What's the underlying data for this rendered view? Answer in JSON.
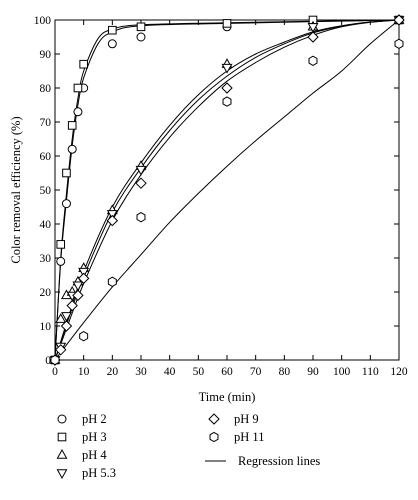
{
  "chart_data": {
    "type": "scatter",
    "xlabel": "Time (min)",
    "ylabel": "Color removal efficiency (%)",
    "xlim": [
      0,
      120
    ],
    "ylim": [
      0,
      100
    ],
    "xticks": [
      0,
      10,
      20,
      30,
      40,
      50,
      60,
      70,
      80,
      90,
      100,
      110,
      120
    ],
    "yticks": [
      0,
      10,
      20,
      30,
      40,
      50,
      60,
      70,
      80,
      90,
      100
    ],
    "grid": false,
    "legend_position": "below",
    "series": [
      {
        "name": "pH 2",
        "marker": "circle",
        "x": [
          0,
          2,
          4,
          6,
          8,
          10,
          20,
          30,
          60,
          90,
          120
        ],
        "y": [
          0,
          29,
          46,
          62,
          73,
          80,
          93,
          95,
          98,
          99,
          100
        ],
        "fit": [
          [
            0,
            0
          ],
          [
            2,
            29
          ],
          [
            4,
            47
          ],
          [
            6,
            63
          ],
          [
            8,
            75
          ],
          [
            10,
            83
          ],
          [
            15,
            93
          ],
          [
            20,
            96.5
          ],
          [
            30,
            98.3
          ],
          [
            60,
            99
          ],
          [
            120,
            100
          ]
        ]
      },
      {
        "name": "pH 3",
        "marker": "square",
        "x": [
          0,
          2,
          4,
          6,
          8,
          10,
          20,
          30,
          60,
          90,
          120
        ],
        "y": [
          0,
          34,
          55,
          69,
          80,
          87,
          97,
          98,
          99,
          100,
          100
        ],
        "fit": [
          [
            0,
            0
          ],
          [
            2,
            30
          ],
          [
            4,
            49
          ],
          [
            6,
            65
          ],
          [
            8,
            77
          ],
          [
            10,
            85
          ],
          [
            15,
            94.5
          ],
          [
            20,
            97.3
          ],
          [
            30,
            98.6
          ],
          [
            60,
            99.2
          ],
          [
            120,
            100
          ]
        ]
      },
      {
        "name": "pH 4",
        "marker": "triangle-up",
        "x": [
          0,
          2,
          4,
          6,
          8,
          10,
          20,
          30,
          60,
          90,
          120
        ],
        "y": [
          0,
          12,
          19,
          20,
          23,
          27,
          44,
          57,
          87,
          98,
          100
        ],
        "fit": [
          [
            0,
            0
          ],
          [
            5,
            13.5
          ],
          [
            10,
            26
          ],
          [
            20,
            45
          ],
          [
            30,
            58
          ],
          [
            40,
            69
          ],
          [
            50,
            78
          ],
          [
            60,
            85
          ],
          [
            70,
            90
          ],
          [
            80,
            93.5
          ],
          [
            90,
            96.5
          ],
          [
            100,
            98.3
          ],
          [
            110,
            99.4
          ],
          [
            120,
            100
          ]
        ]
      },
      {
        "name": "pH 5.3",
        "marker": "triangle-down",
        "x": [
          0,
          2,
          4,
          6,
          8,
          10,
          20,
          30,
          60,
          90,
          120
        ],
        "y": [
          0,
          4,
          13,
          19,
          22,
          26,
          43,
          56,
          86,
          98,
          100
        ],
        "fit": [
          [
            0,
            0
          ],
          [
            5,
            12.8
          ],
          [
            10,
            24.5
          ],
          [
            20,
            43.5
          ],
          [
            30,
            56.5
          ],
          [
            40,
            67.5
          ],
          [
            50,
            76.5
          ],
          [
            60,
            83.5
          ],
          [
            70,
            89
          ],
          [
            80,
            93
          ],
          [
            90,
            96.2
          ],
          [
            100,
            98.2
          ],
          [
            110,
            99.4
          ],
          [
            120,
            100
          ]
        ]
      },
      {
        "name": "pH 9",
        "marker": "diamond",
        "x": [
          0,
          2,
          4,
          6,
          8,
          10,
          20,
          30,
          60,
          90,
          120
        ],
        "y": [
          0,
          3,
          10,
          16,
          19,
          24,
          41,
          52,
          80,
          95,
          100
        ],
        "fit": [
          [
            0,
            0
          ],
          [
            5,
            11.5
          ],
          [
            10,
            22.5
          ],
          [
            20,
            41
          ],
          [
            30,
            54.5
          ],
          [
            40,
            65.5
          ],
          [
            50,
            74.5
          ],
          [
            60,
            82
          ],
          [
            70,
            87.5
          ],
          [
            80,
            92
          ],
          [
            90,
            95.5
          ],
          [
            100,
            98
          ],
          [
            110,
            99.3
          ],
          [
            120,
            100
          ]
        ]
      },
      {
        "name": "pH 11",
        "marker": "hexagon",
        "x": [
          0,
          10,
          20,
          30,
          60,
          90,
          120
        ],
        "y": [
          0,
          7,
          23,
          42,
          76,
          88,
          93
        ],
        "fit": [
          [
            0,
            0
          ],
          [
            10,
            11
          ],
          [
            20,
            21.5
          ],
          [
            30,
            31
          ],
          [
            40,
            40.5
          ],
          [
            50,
            49
          ],
          [
            60,
            57
          ],
          [
            70,
            64.5
          ],
          [
            80,
            71.5
          ],
          [
            90,
            78.5
          ],
          [
            100,
            85
          ],
          [
            110,
            93
          ],
          [
            120,
            100
          ]
        ]
      }
    ],
    "line_legend": "Regression lines"
  }
}
